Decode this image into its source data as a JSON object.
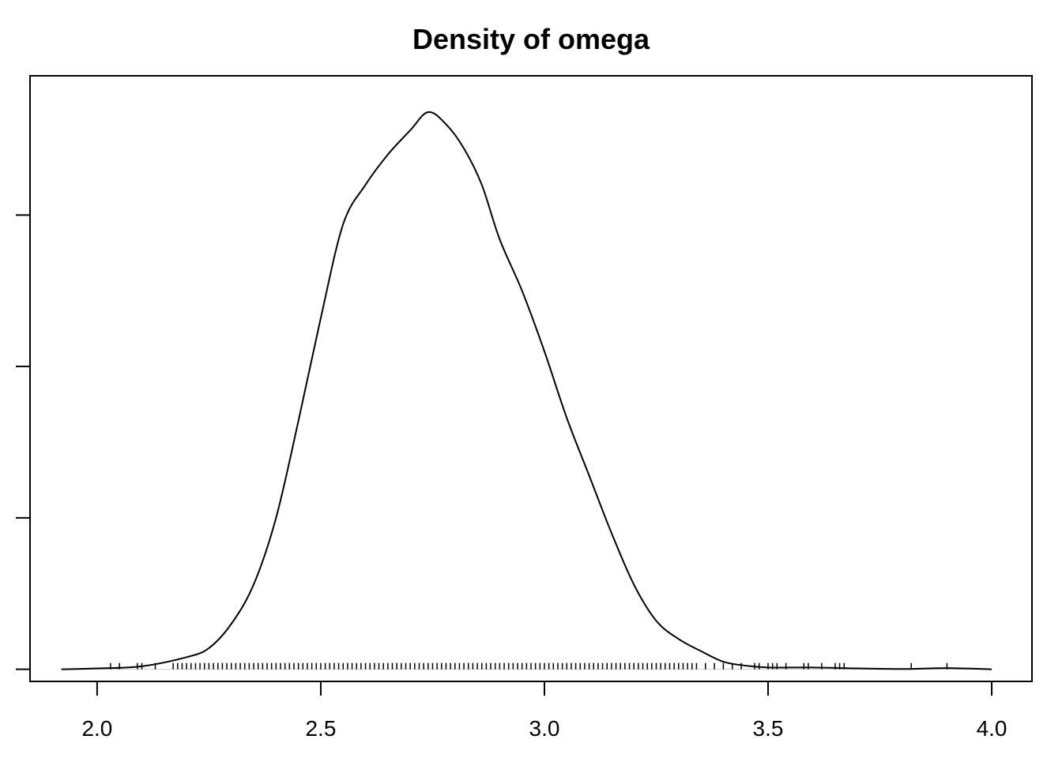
{
  "chart_data": {
    "type": "line",
    "title": "Density of omega",
    "xlabel": "",
    "ylabel": "",
    "xlim": [
      1.85,
      4.09
    ],
    "ylim": [
      -0.04,
      1.96
    ],
    "x_ticks": [
      2.0,
      2.5,
      3.0,
      3.5,
      4.0
    ],
    "x_tick_labels": [
      "2.0",
      "2.5",
      "3.0",
      "3.5",
      "4.0"
    ],
    "y_ticks": [
      0.0,
      0.5,
      1.0,
      1.5
    ],
    "y_tick_labels": [
      "",
      "",
      "",
      ""
    ],
    "grid": false,
    "legend": "none",
    "line_color": "#000000",
    "baseline_color": "#cccccc",
    "series": [
      {
        "x": [
          1.92,
          2.0,
          2.1,
          2.2,
          2.25,
          2.3,
          2.35,
          2.4,
          2.45,
          2.5,
          2.55,
          2.6,
          2.65,
          2.7,
          2.74,
          2.78,
          2.82,
          2.86,
          2.9,
          2.95,
          3.0,
          3.05,
          3.1,
          3.15,
          3.2,
          3.25,
          3.3,
          3.35,
          3.4,
          3.45,
          3.5,
          3.6,
          3.7,
          3.8,
          3.9,
          4.0
        ],
        "y": [
          0.0,
          0.003,
          0.01,
          0.04,
          0.07,
          0.15,
          0.28,
          0.5,
          0.82,
          1.16,
          1.47,
          1.6,
          1.7,
          1.78,
          1.84,
          1.8,
          1.72,
          1.6,
          1.42,
          1.25,
          1.05,
          0.83,
          0.64,
          0.45,
          0.28,
          0.16,
          0.1,
          0.06,
          0.025,
          0.012,
          0.006,
          0.006,
          0.003,
          0.001,
          0.004,
          0.0
        ]
      }
    ],
    "rug": [
      2.03,
      2.05,
      2.09,
      2.1,
      2.13,
      2.17,
      2.18,
      2.19,
      2.2,
      2.21,
      2.22,
      2.23,
      2.24,
      2.25,
      2.26,
      2.27,
      2.28,
      2.29,
      2.3,
      2.31,
      2.32,
      2.33,
      2.34,
      2.35,
      2.36,
      2.37,
      2.38,
      2.39,
      2.4,
      2.41,
      2.42,
      2.43,
      2.44,
      2.45,
      2.46,
      2.47,
      2.48,
      2.49,
      2.5,
      2.51,
      2.52,
      2.53,
      2.54,
      2.55,
      2.56,
      2.57,
      2.58,
      2.59,
      2.6,
      2.61,
      2.62,
      2.63,
      2.64,
      2.65,
      2.66,
      2.67,
      2.68,
      2.69,
      2.7,
      2.71,
      2.72,
      2.73,
      2.74,
      2.75,
      2.76,
      2.77,
      2.78,
      2.79,
      2.8,
      2.81,
      2.82,
      2.83,
      2.84,
      2.85,
      2.86,
      2.87,
      2.88,
      2.89,
      2.9,
      2.91,
      2.92,
      2.93,
      2.94,
      2.95,
      2.96,
      2.97,
      2.98,
      2.99,
      3.0,
      3.01,
      3.02,
      3.03,
      3.04,
      3.05,
      3.06,
      3.07,
      3.08,
      3.09,
      3.1,
      3.11,
      3.12,
      3.13,
      3.14,
      3.15,
      3.16,
      3.17,
      3.18,
      3.19,
      3.2,
      3.21,
      3.22,
      3.23,
      3.24,
      3.25,
      3.26,
      3.27,
      3.28,
      3.29,
      3.3,
      3.31,
      3.32,
      3.33,
      3.34,
      3.36,
      3.38,
      3.4,
      3.42,
      3.44,
      3.47,
      3.48,
      3.5,
      3.51,
      3.52,
      3.54,
      3.58,
      3.59,
      3.62,
      3.65,
      3.66,
      3.67,
      3.82,
      3.9
    ]
  }
}
